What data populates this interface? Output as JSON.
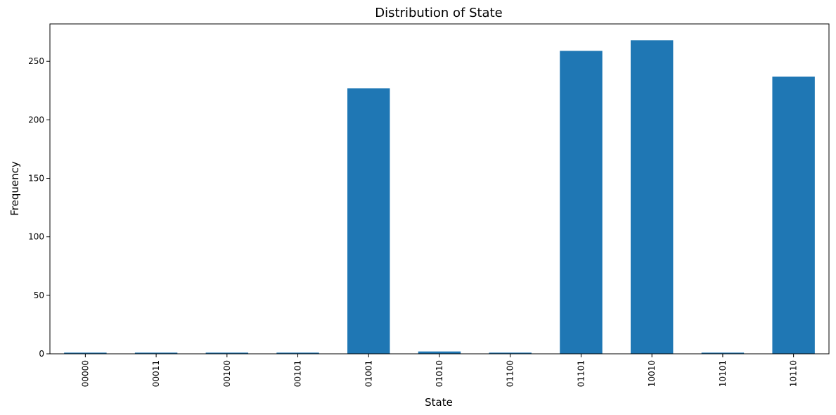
{
  "chart_data": {
    "type": "bar",
    "title": "Distribution of State",
    "xlabel": "State",
    "ylabel": "Frequency",
    "categories": [
      "00000",
      "00011",
      "00100",
      "00101",
      "01001",
      "01010",
      "01100",
      "01101",
      "10010",
      "10101",
      "10110"
    ],
    "values": [
      1,
      1,
      1,
      1,
      227,
      2,
      1,
      259,
      268,
      1,
      237
    ],
    "ylim": [
      0,
      282
    ],
    "yticks": [
      0,
      50,
      100,
      150,
      200,
      250
    ],
    "grid": false,
    "legend": "none",
    "bar_color": "#1f77b4"
  }
}
